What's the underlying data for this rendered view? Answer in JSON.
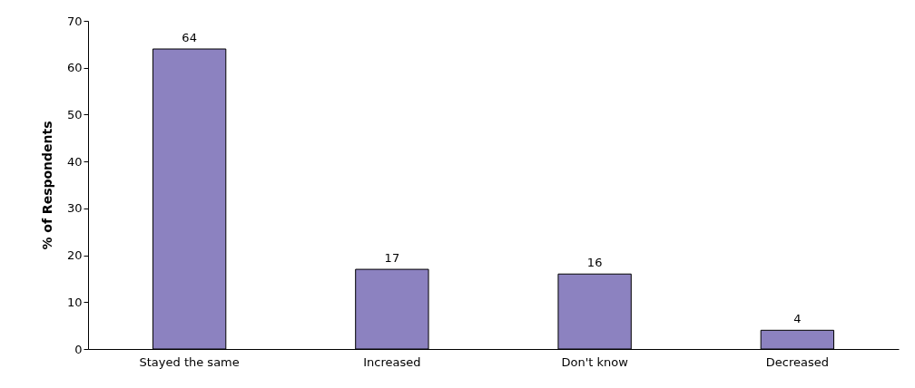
{
  "chart_data": {
    "type": "bar",
    "ylabel": "% of Respondents",
    "categories": [
      "Stayed the same",
      "Increased",
      "Don't know",
      "Decreased"
    ],
    "values": [
      64,
      17,
      16,
      4
    ],
    "color": "#8c82c0",
    "ylim": [
      0,
      70
    ],
    "yticks": [
      0,
      10,
      20,
      30,
      40,
      50,
      60,
      70
    ],
    "data_labels": true,
    "grid": false
  }
}
